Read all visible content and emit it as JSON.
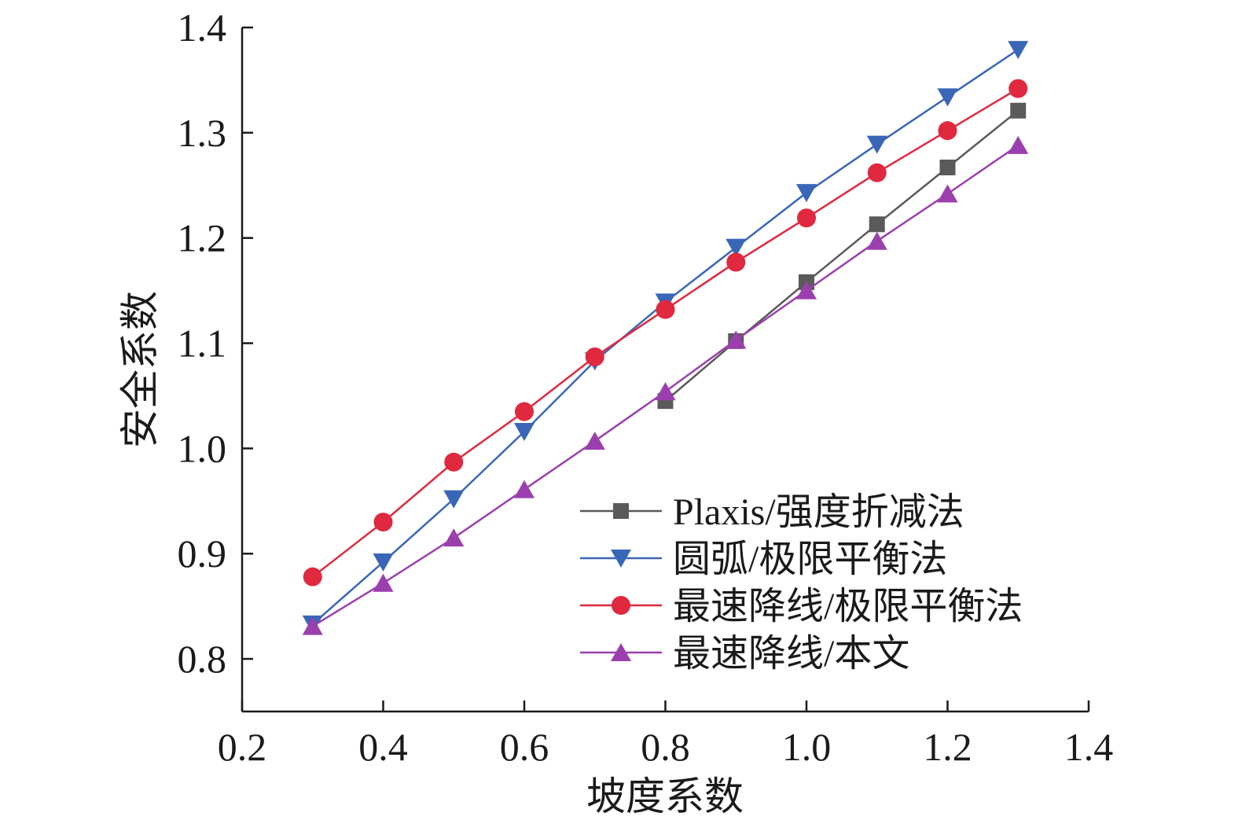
{
  "chart_data": {
    "type": "line",
    "title": "",
    "xlabel": "坡度系数",
    "ylabel": "安全系数",
    "xlim": [
      0.2,
      1.4
    ],
    "ylim": [
      0.75,
      1.4
    ],
    "xticks": [
      "0.2",
      "0.4",
      "0.6",
      "0.8",
      "1.0",
      "1.2",
      "1.4"
    ],
    "yticks": [
      "0.8",
      "0.9",
      "1.0",
      "1.1",
      "1.2",
      "1.3",
      "1.4"
    ],
    "grid": false,
    "legend_position": "bottom-right",
    "x": [
      0.3,
      0.4,
      0.5,
      0.6,
      0.7,
      0.8,
      0.9,
      1.0,
      1.1,
      1.2,
      1.3
    ],
    "series": [
      {
        "name": "Plaxis/强度折减法",
        "color": "#5a5a5a",
        "marker": "square",
        "x": [
          0.8,
          0.9,
          1.0,
          1.1,
          1.2,
          1.3
        ],
        "values": [
          1.045,
          1.102,
          1.158,
          1.213,
          1.267,
          1.321
        ]
      },
      {
        "name": "圆弧/极限平衡法",
        "color": "#3a66b8",
        "marker": "triangle-down",
        "x": [
          0.3,
          0.4,
          0.5,
          0.6,
          0.7,
          0.8,
          0.9,
          1.0,
          1.1,
          1.2,
          1.3
        ],
        "values": [
          0.833,
          0.892,
          0.952,
          1.016,
          1.083,
          1.139,
          1.191,
          1.243,
          1.289,
          1.334,
          1.379
        ]
      },
      {
        "name": "最速降线/极限平衡法",
        "color": "#e0283f",
        "marker": "circle",
        "x": [
          0.3,
          0.4,
          0.5,
          0.6,
          0.7,
          0.8,
          0.9,
          1.0,
          1.1,
          1.2,
          1.3
        ],
        "values": [
          0.878,
          0.93,
          0.987,
          1.035,
          1.087,
          1.132,
          1.177,
          1.219,
          1.262,
          1.302,
          1.342
        ]
      },
      {
        "name": "最速降线/本文",
        "color": "#9b3fae",
        "marker": "triangle-up",
        "x": [
          0.3,
          0.4,
          0.5,
          0.6,
          0.7,
          0.8,
          0.9,
          1.0,
          1.1,
          1.2,
          1.3
        ],
        "values": [
          0.831,
          0.872,
          0.915,
          0.961,
          1.007,
          1.054,
          1.103,
          1.15,
          1.197,
          1.242,
          1.288
        ]
      }
    ]
  }
}
